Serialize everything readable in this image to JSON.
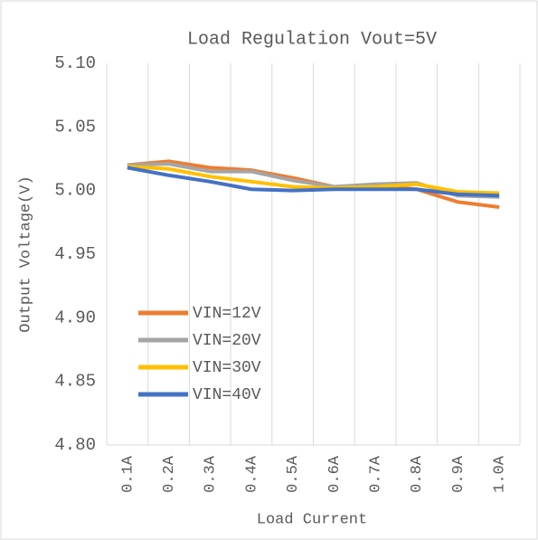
{
  "chart_data": {
    "type": "line",
    "title": "Load Regulation    Vout=5V",
    "x_label": "Load Current",
    "y_label": "Output Voltage(V)",
    "categories": [
      "0.1A",
      "0.2A",
      "0.3A",
      "0.4A",
      "0.5A",
      "0.6A",
      "0.7A",
      "0.8A",
      "0.9A",
      "1.0A"
    ],
    "series": [
      {
        "name": "VIN=12V",
        "color": "#ed7d31",
        "values": [
          5.02,
          5.023,
          5.018,
          5.016,
          5.01,
          5.003,
          5.004,
          5.001,
          4.991,
          4.987
        ]
      },
      {
        "name": "VIN=20V",
        "color": "#a5a5a5",
        "values": [
          5.02,
          5.021,
          5.015,
          5.015,
          5.008,
          5.003,
          5.005,
          5.006,
          4.996,
          4.995
        ]
      },
      {
        "name": "VIN=30V",
        "color": "#ffc000",
        "values": [
          5.019,
          5.017,
          5.011,
          5.007,
          5.003,
          5.002,
          5.003,
          5.005,
          4.999,
          4.998
        ]
      },
      {
        "name": "VIN=40V",
        "color": "#4472c4",
        "values": [
          5.018,
          5.012,
          5.007,
          5.001,
          5.0,
          5.001,
          5.001,
          5.001,
          4.997,
          4.996
        ]
      }
    ],
    "ylim": [
      4.8,
      5.1
    ],
    "yticks": [
      {
        "value": 4.8,
        "label": "4.80"
      },
      4.85,
      {
        "value": 4.9,
        "label": "4.90"
      },
      4.95,
      {
        "value": 5.0,
        "label": "5.00"
      },
      5.05,
      {
        "value": 5.1,
        "label": "5.10"
      }
    ],
    "grid": "x",
    "legend": "lower left"
  }
}
